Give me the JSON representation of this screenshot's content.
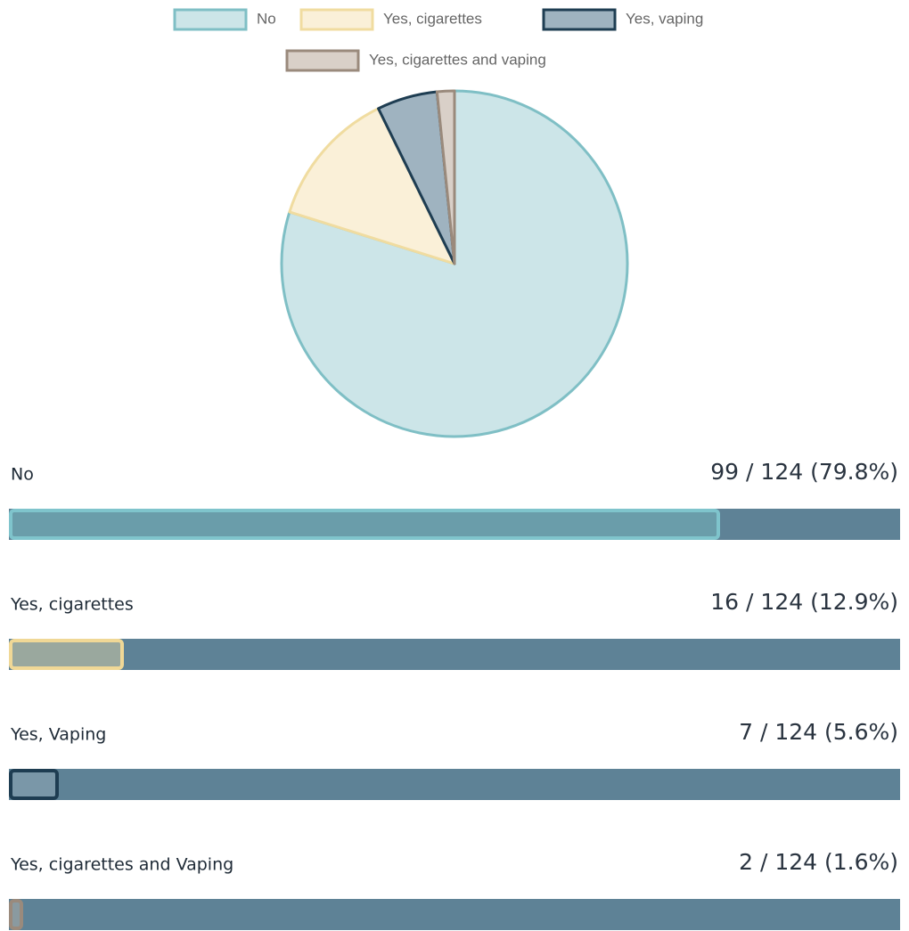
{
  "chart_data": {
    "type": "pie",
    "categories": [
      "No",
      "Yes, cigarettes",
      "Yes, vaping",
      "Yes, cigarettes and vaping"
    ],
    "values": [
      99,
      16,
      7,
      2
    ],
    "colors": [
      "#cce5e8",
      "#faf0d8",
      "#9fb3c0",
      "#d9d0c8"
    ],
    "border_colors": [
      "#7fbfc5",
      "#f0dca0",
      "#1e3d52",
      "#9a8a7c"
    ],
    "legend": "top"
  },
  "responses": [
    {
      "label": "No",
      "percent": 79.8,
      "value_label": "99 / 124 (79.8%)",
      "color": "#6a9daa",
      "border_color": "#7fc4cc"
    },
    {
      "label": "Yes, cigarettes",
      "percent": 12.9,
      "value_label": "16 / 124 (12.9%)",
      "color": "#9aa89e",
      "border_color": "#f0d896"
    },
    {
      "label": "Yes, Vaping",
      "percent": 5.6,
      "value_label": "7 / 124 (5.6%)",
      "color": "#7a97a8",
      "border_color": "#1e3d52"
    },
    {
      "label": "Yes, cigarettes and Vaping",
      "percent": 1.6,
      "value_label": "2 / 124 (1.6%)",
      "color": "#8a9aa0",
      "border_color": "#9a8a7c"
    }
  ]
}
